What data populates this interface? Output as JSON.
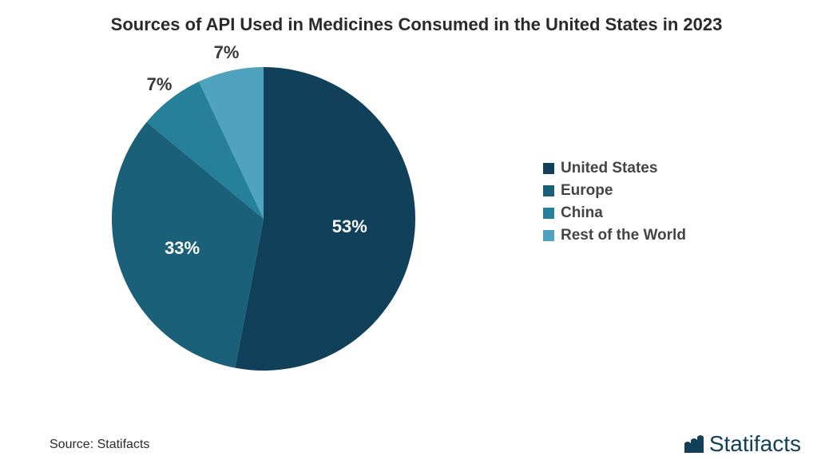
{
  "title": "Sources of API Used in Medicines Consumed in the United States in 2023",
  "title_fontsize": 22,
  "chart": {
    "type": "pie",
    "start_angle_deg": -90,
    "radius": 190,
    "slices": [
      {
        "label": "United States",
        "value": 53,
        "display": "53%",
        "color": "#10405a"
      },
      {
        "label": "Europe",
        "value": 33,
        "display": "33%",
        "color": "#1b6079"
      },
      {
        "label": "China",
        "value": 7,
        "display": "7%",
        "color": "#26809a"
      },
      {
        "label": "Rest of the World",
        "value": 7,
        "display": "7%",
        "color": "#4fa3bf"
      }
    ],
    "label_color_on_dark": "#ffffff",
    "label_color_on_light": "#3a3a3a",
    "label_fontsize": 22,
    "legend_fontsize": 19,
    "legend_text_color": "#444444"
  },
  "source_text": "Source: Statifacts",
  "source_fontsize": 16,
  "brand_name": "Statifacts",
  "brand_fontsize": 28,
  "brand_color": "#10405a"
}
